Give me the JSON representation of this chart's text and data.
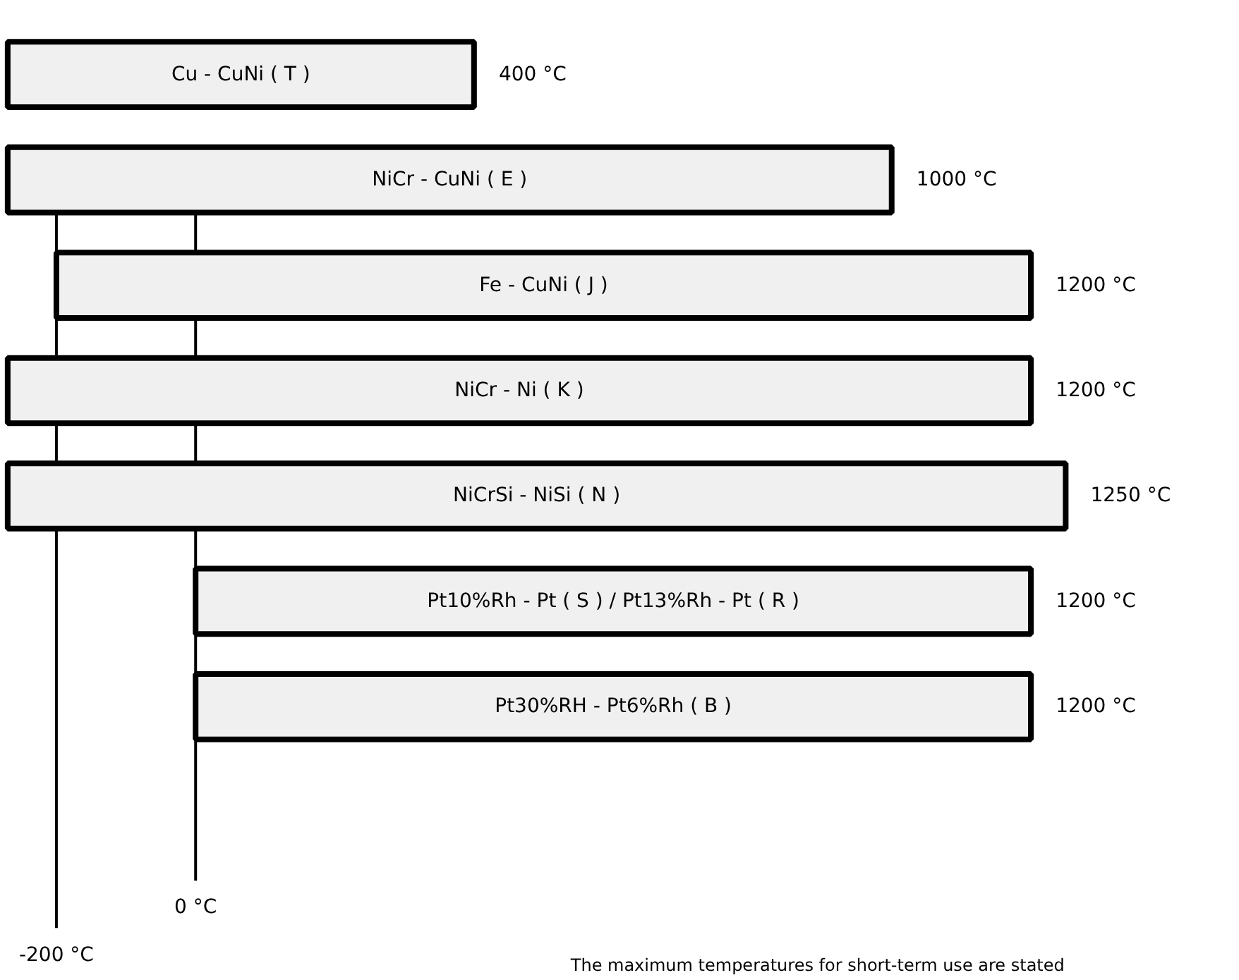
{
  "chart_data": {
    "type": "bar",
    "orientation": "horizontal",
    "categories": [
      "Cu - CuNi ( T )",
      "NiCr - CuNi ( E )",
      "Fe - CuNi ( J )",
      "NiCr - Ni ( K )",
      "NiCrSi - NiSi ( N )",
      "Pt10%Rh - Pt ( S ) / Pt13%Rh - Pt ( R )",
      "Pt30%RH - Pt6%Rh ( B )"
    ],
    "base": [
      -270,
      -270,
      -200,
      -270,
      -270,
      0,
      0
    ],
    "values": [
      670,
      1270,
      1400,
      1470,
      1520,
      1200,
      1200
    ],
    "value_labels": [
      "400 °C",
      "1000 °C",
      "1200 °C",
      "1200 °C",
      "1250 °C",
      "1200 °C",
      "1200 °C"
    ],
    "color": "#f0f0f0",
    "xlim": [
      -280,
      1500
    ],
    "tick_labels": false,
    "ref_lines": [
      {
        "axis": "x",
        "value": -200,
        "label": "-200 °C"
      },
      {
        "axis": "x",
        "value": 0,
        "label": "0 °C"
      }
    ],
    "annotations": [
      "The maximum temperatures for short-term use are stated"
    ]
  }
}
